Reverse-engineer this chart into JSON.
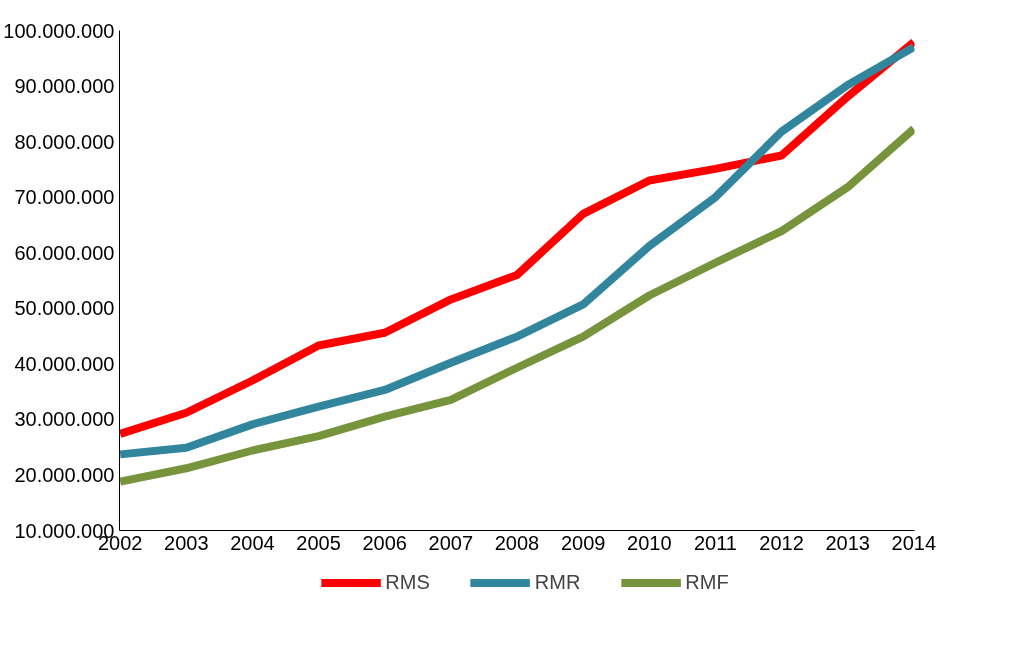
{
  "chart_data": {
    "type": "line",
    "categories": [
      "2002",
      "2003",
      "2004",
      "2005",
      "2006",
      "2007",
      "2008",
      "2009",
      "2010",
      "2011",
      "2012",
      "2013",
      "2014"
    ],
    "series": [
      {
        "name": "RMS",
        "color": "#ff0000",
        "values": [
          27400000,
          31200000,
          37000000,
          43300000,
          45600000,
          51600000,
          56000000,
          67000000,
          73000000,
          75100000,
          77500000,
          88100000,
          97900000
        ]
      },
      {
        "name": "RMR",
        "color": "#31859c",
        "values": [
          23700000,
          24900000,
          29100000,
          32300000,
          35300000,
          40200000,
          44900000,
          50700000,
          61200000,
          70000000,
          81800000,
          90200000,
          97000000
        ]
      },
      {
        "name": "RMF",
        "color": "#77933c",
        "values": [
          18800000,
          21200000,
          24400000,
          27000000,
          30500000,
          33500000,
          39300000,
          44900000,
          52300000,
          58200000,
          63900000,
          71800000,
          82300000
        ]
      }
    ],
    "ylim": [
      10000000,
      100000000
    ],
    "yticks": [
      {
        "value": 10000000,
        "label": "10.000.000"
      },
      {
        "value": 20000000,
        "label": "20.000.000"
      },
      {
        "value": 30000000,
        "label": "30.000.000"
      },
      {
        "value": 40000000,
        "label": "40.000.000"
      },
      {
        "value": 50000000,
        "label": "50.000.000"
      },
      {
        "value": 60000000,
        "label": "60.000.000"
      },
      {
        "value": 70000000,
        "label": "70.000.000"
      },
      {
        "value": 80000000,
        "label": "80.000.000"
      },
      {
        "value": 90000000,
        "label": "90.000.000"
      },
      {
        "value": 100000000,
        "label": "100.000.000"
      }
    ],
    "grid": false,
    "legend": "bottom",
    "marker": "none",
    "line_style": "solid"
  }
}
